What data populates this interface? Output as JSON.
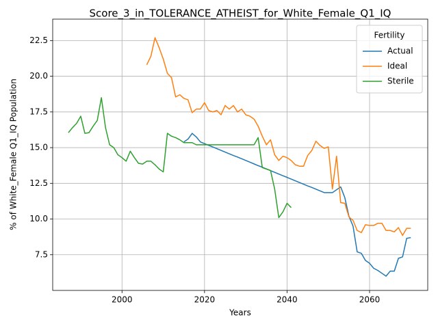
{
  "chart_data": {
    "type": "line",
    "title": "Score_3_in_TOLERANCE_ATHEIST_for_White_Female_Q1_IQ",
    "xlabel": "Years",
    "ylabel": "% of White_Female Q1_IQ Population",
    "legend_title": "Fertility",
    "legend": "upper right",
    "grid": true,
    "xlim": [
      1983.2,
      2074.1
    ],
    "ylim": [
      5.0,
      24.0
    ],
    "xticks": [
      2000,
      2020,
      2040,
      2060
    ],
    "yticks": [
      7.5,
      {
        "value": 10,
        "label": "10.0"
      },
      12.5,
      {
        "value": 15,
        "label": "15.0"
      },
      17.5,
      {
        "value": 20,
        "label": "20.0"
      },
      22.5
    ],
    "series": [
      {
        "name": "Actual",
        "color": "#1f77b4",
        "x": [
          2015,
          2016,
          2017,
          2018,
          2019,
          2020,
          2021,
          2022,
          2023,
          2024,
          2025,
          2026,
          2027,
          2028,
          2029,
          2030,
          2031,
          2032,
          2033,
          2034,
          2035,
          2036,
          2037,
          2038,
          2039,
          2040,
          2041,
          2042,
          2043,
          2044,
          2045,
          2046,
          2047,
          2048,
          2049,
          2050,
          2051,
          2052,
          2053,
          2054,
          2055,
          2056,
          2057,
          2058,
          2059,
          2060,
          2061,
          2062,
          2063,
          2064,
          2065,
          2066,
          2067,
          2068,
          2069,
          2070
        ],
        "values": [
          15.4,
          15.6,
          16.0,
          15.75,
          15.4,
          15.28,
          15.16,
          15.05,
          14.93,
          14.81,
          14.69,
          14.57,
          14.45,
          14.34,
          14.22,
          14.1,
          13.98,
          13.86,
          13.74,
          13.63,
          13.51,
          13.39,
          13.27,
          13.15,
          13.03,
          12.92,
          12.8,
          12.68,
          12.56,
          12.44,
          12.32,
          12.21,
          12.09,
          11.97,
          11.85,
          11.85,
          11.85,
          12.05,
          12.25,
          11.5,
          10.2,
          9.5,
          7.7,
          7.6,
          7.1,
          6.9,
          6.55,
          6.4,
          6.2,
          6.0,
          6.35,
          6.35,
          7.25,
          7.35,
          8.65,
          8.7
        ]
      },
      {
        "name": "Ideal",
        "color": "#ff7f0e",
        "x": [
          2006,
          2007,
          2008,
          2009,
          2010,
          2011,
          2012,
          2013,
          2014,
          2015,
          2016,
          2017,
          2018,
          2019,
          2020,
          2021,
          2022,
          2023,
          2024,
          2025,
          2026,
          2027,
          2028,
          2029,
          2030,
          2031,
          2032,
          2033,
          2034,
          2035,
          2036,
          2037,
          2038,
          2039,
          2040,
          2041,
          2042,
          2043,
          2044,
          2045,
          2046,
          2047,
          2048,
          2049,
          2050,
          2051,
          2052,
          2053,
          2054,
          2055,
          2056,
          2057,
          2058,
          2059,
          2060,
          2061,
          2062,
          2063,
          2064,
          2065,
          2066,
          2067,
          2068,
          2069,
          2070
        ],
        "values": [
          20.8,
          21.4,
          22.7,
          22.0,
          21.2,
          20.2,
          19.9,
          18.55,
          18.7,
          18.45,
          18.35,
          17.45,
          17.7,
          17.7,
          18.15,
          17.6,
          17.5,
          17.6,
          17.3,
          17.95,
          17.7,
          17.95,
          17.5,
          17.7,
          17.3,
          17.2,
          17.0,
          16.5,
          15.8,
          15.2,
          15.55,
          14.5,
          14.1,
          14.4,
          14.3,
          14.1,
          13.8,
          13.7,
          13.7,
          14.45,
          14.8,
          15.45,
          15.15,
          14.95,
          15.05,
          12.1,
          14.4,
          11.15,
          11.1,
          10.15,
          9.9,
          9.2,
          9.05,
          9.6,
          9.55,
          9.55,
          9.7,
          9.7,
          9.2,
          9.2,
          9.1,
          9.4,
          8.85,
          9.35,
          9.35
        ]
      },
      {
        "name": "Sterile",
        "color": "#2ca02c",
        "x": [
          1987,
          1988,
          1989,
          1990,
          1991,
          1992,
          1993,
          1994,
          1995,
          1996,
          1997,
          1998,
          1999,
          2000,
          2001,
          2002,
          2003,
          2004,
          2005,
          2006,
          2007,
          2008,
          2009,
          2010,
          2011,
          2012,
          2013,
          2014,
          2015,
          2016,
          2017,
          2018,
          2019,
          2020,
          2021,
          2022,
          2023,
          2024,
          2025,
          2026,
          2027,
          2028,
          2029,
          2030,
          2031,
          2032,
          2033,
          2034,
          2035,
          2036,
          2037,
          2038,
          2039,
          2040,
          2041
        ],
        "values": [
          16.05,
          16.4,
          16.7,
          17.2,
          16.0,
          16.05,
          16.5,
          16.9,
          18.5,
          16.4,
          15.2,
          15.0,
          14.5,
          14.3,
          14.05,
          14.75,
          14.3,
          13.9,
          13.85,
          14.05,
          14.05,
          13.8,
          13.5,
          13.3,
          16.0,
          15.8,
          15.7,
          15.55,
          15.35,
          15.35,
          15.35,
          15.2,
          15.2,
          15.2,
          15.2,
          15.2,
          15.2,
          15.2,
          15.2,
          15.2,
          15.2,
          15.2,
          15.2,
          15.2,
          15.2,
          15.2,
          15.7,
          13.6,
          13.5,
          13.4,
          12.1,
          10.1,
          10.5,
          11.1,
          10.8
        ]
      }
    ]
  }
}
